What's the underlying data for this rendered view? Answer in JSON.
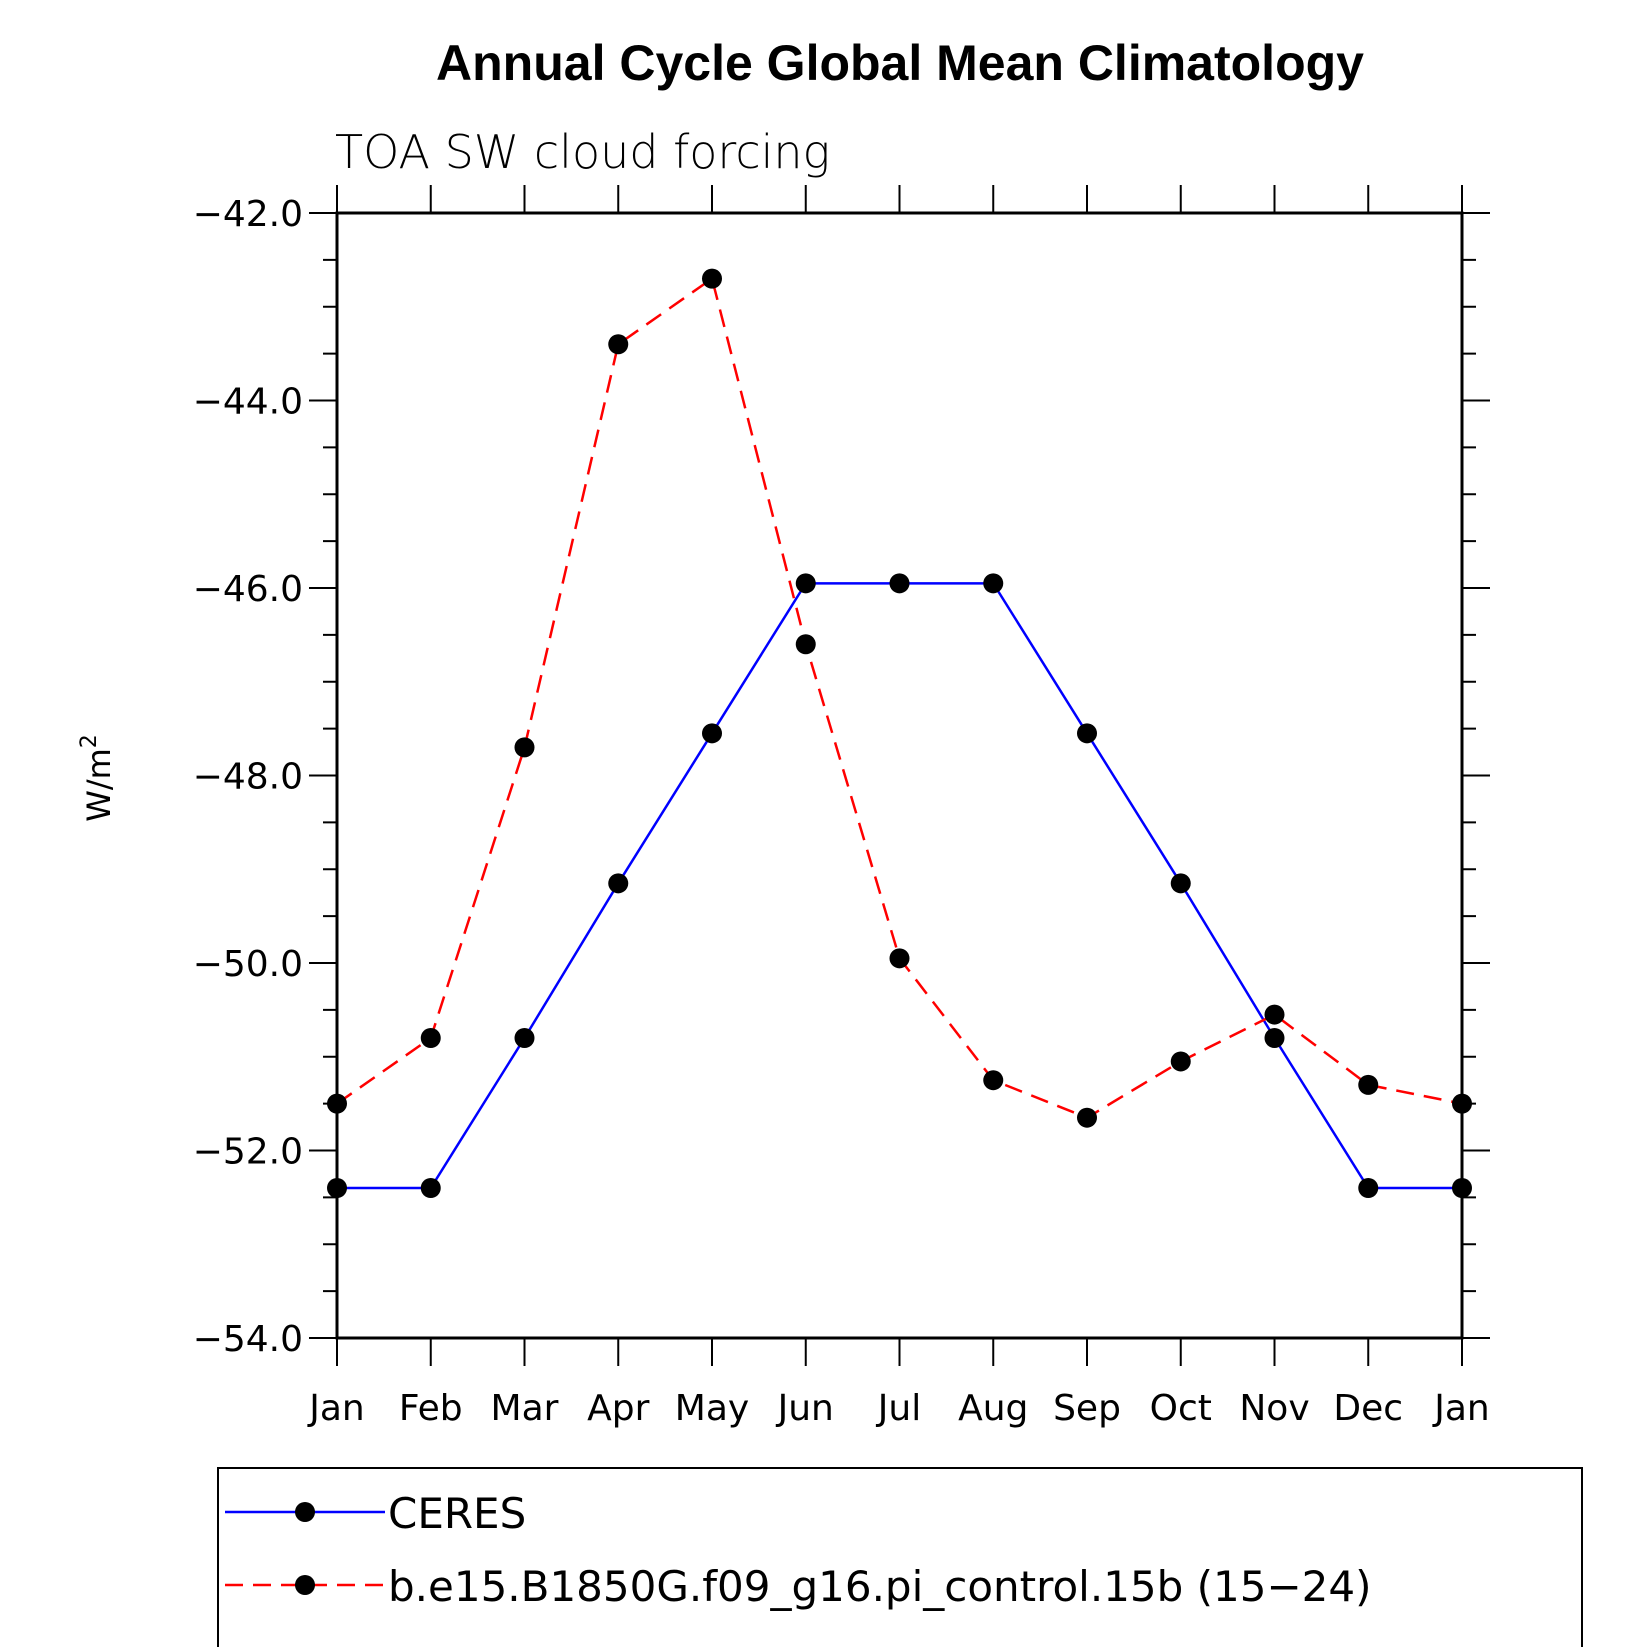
{
  "chart_data": {
    "type": "line",
    "title": "Annual Cycle Global Mean Climatology",
    "subtitle": "TOA SW cloud forcing",
    "ylabel_base": "W/m",
    "ylabel_sup": "2",
    "xlabel": "",
    "categories": [
      "Jan",
      "Feb",
      "Mar",
      "Apr",
      "May",
      "Jun",
      "Jul",
      "Aug",
      "Sep",
      "Oct",
      "Nov",
      "Dec",
      "Jan"
    ],
    "ylim": [
      -54.0,
      -42.0
    ],
    "yticks": [
      "-42.0",
      "-44.0",
      "-46.0",
      "-48.0",
      "-50.0",
      "-52.0",
      "-54.0"
    ],
    "ytick_values": [
      -42.0,
      -44.0,
      -46.0,
      -48.0,
      -50.0,
      -52.0,
      -54.0
    ],
    "series": [
      {
        "name": "CERES",
        "color": "#0000ff",
        "dashed": false,
        "values": [
          -52.4,
          -52.4,
          -50.8,
          -49.15,
          -47.55,
          -45.95,
          -45.95,
          -45.95,
          -47.55,
          -49.15,
          -50.8,
          -52.4,
          -52.4
        ]
      },
      {
        "name": "b.e15.B1850G.f09_g16.pi_control.15b (15−24)",
        "color": "#ff0000",
        "dashed": true,
        "values": [
          -51.5,
          -50.8,
          -47.7,
          -43.4,
          -42.7,
          -46.6,
          -49.95,
          -51.25,
          -51.65,
          -51.05,
          -50.55,
          -51.3,
          -51.5
        ]
      }
    ],
    "legend_position": "bottom"
  }
}
